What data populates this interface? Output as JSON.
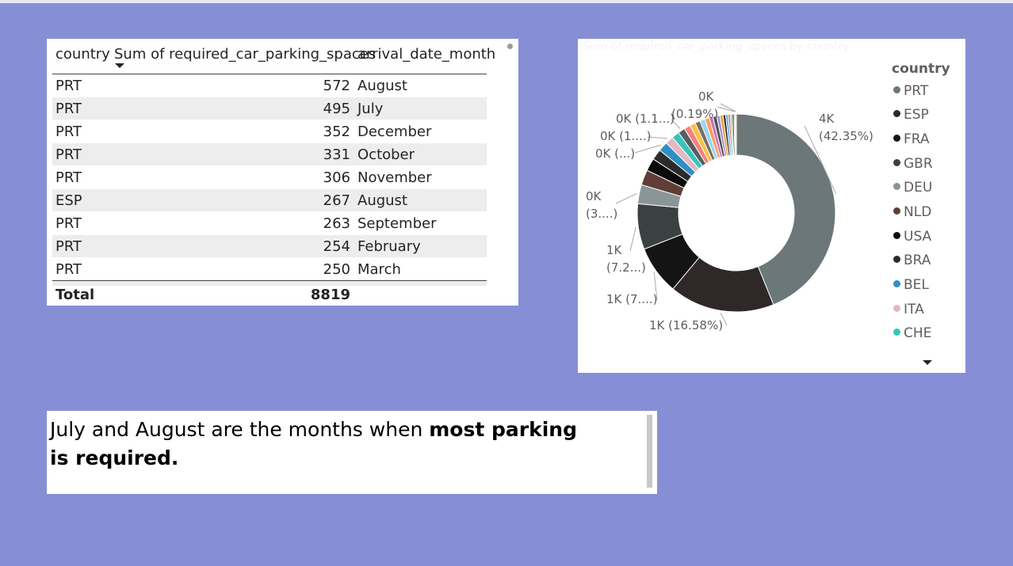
{
  "table": {
    "headers": [
      "country",
      "Sum of required_car_parking_spaces",
      "arrival_date_month"
    ],
    "sort_column": "Sum of required_car_parking_spaces",
    "rows": [
      [
        "PRT",
        "572",
        "August"
      ],
      [
        "PRT",
        "495",
        "July"
      ],
      [
        "PRT",
        "352",
        "December"
      ],
      [
        "PRT",
        "331",
        "October"
      ],
      [
        "PRT",
        "306",
        "November"
      ],
      [
        "ESP",
        "267",
        "August"
      ],
      [
        "PRT",
        "263",
        "September"
      ],
      [
        "PRT",
        "254",
        "February"
      ],
      [
        "PRT",
        "250",
        "March"
      ]
    ],
    "total_label": "Total",
    "total_value": "8819"
  },
  "chart_data": {
    "type": "pie",
    "variant": "donut",
    "title": "Sum of required_car_parking_spaces by country",
    "legend_title": "country",
    "legend_position": "right",
    "legend": [
      {
        "name": "PRT",
        "color": "#6b7779"
      },
      {
        "name": "ESP",
        "color": "#2e2828"
      },
      {
        "name": "FRA",
        "color": "#141414"
      },
      {
        "name": "GBR",
        "color": "#3b4040"
      },
      {
        "name": "DEU",
        "color": "#8a9597"
      },
      {
        "name": "NLD",
        "color": "#5e3e36"
      },
      {
        "name": "USA",
        "color": "#0a0a0a"
      },
      {
        "name": "BRA",
        "color": "#2b2b2b"
      },
      {
        "name": "BEL",
        "color": "#2f8fc4"
      },
      {
        "name": "ITA",
        "color": "#e3b8c0"
      },
      {
        "name": "CHE",
        "color": "#38c4b9"
      }
    ],
    "slices": [
      {
        "name": "PRT",
        "percent": 42.35,
        "color": "#6b7779"
      },
      {
        "name": "ESP",
        "percent": 16.58,
        "color": "#2e2828"
      },
      {
        "name": "FRA",
        "percent": 7.7,
        "color": "#141414"
      },
      {
        "name": "GBR",
        "percent": 7.2,
        "color": "#3b4040"
      },
      {
        "name": "DEU",
        "percent": 3.0,
        "color": "#8a9597"
      },
      {
        "name": "NLD",
        "percent": 2.4,
        "color": "#5e3e36"
      },
      {
        "name": "USA",
        "percent": 2.0,
        "color": "#0a0a0a"
      },
      {
        "name": "BRA",
        "percent": 1.7,
        "color": "#2b2b2b"
      },
      {
        "name": "BEL",
        "percent": 1.5,
        "color": "#2f8fc4"
      },
      {
        "name": "ITA",
        "percent": 1.3,
        "color": "#e3b8c0"
      },
      {
        "name": "CHE",
        "percent": 1.2,
        "color": "#38c4b9"
      },
      {
        "name": "other-1",
        "percent": 1.1,
        "color": "#565f60"
      },
      {
        "name": "other-2",
        "percent": 1.0,
        "color": "#f77f7f"
      },
      {
        "name": "other-3",
        "percent": 0.9,
        "color": "#f5c242"
      },
      {
        "name": "other-4",
        "percent": 0.8,
        "color": "#7a6e68"
      },
      {
        "name": "other-5",
        "percent": 0.8,
        "color": "#9ad4f0"
      },
      {
        "name": "other-6",
        "percent": 0.7,
        "color": "#ff9d5c"
      },
      {
        "name": "other-7",
        "percent": 0.6,
        "color": "#d26fb8"
      },
      {
        "name": "other-8",
        "percent": 0.6,
        "color": "#4a5356"
      },
      {
        "name": "other-9",
        "percent": 0.5,
        "color": "#a48fd0"
      },
      {
        "name": "other-10",
        "percent": 0.5,
        "color": "#e8a23d"
      },
      {
        "name": "other-11",
        "percent": 0.4,
        "color": "#1f1f1f"
      },
      {
        "name": "other-12",
        "percent": 0.4,
        "color": "#6ab0d8"
      },
      {
        "name": "other-13",
        "percent": 0.3,
        "color": "#c95f5f"
      },
      {
        "name": "other-14",
        "percent": 0.3,
        "color": "#8fd19e"
      },
      {
        "name": "other-15",
        "percent": 0.3,
        "color": "#444444"
      },
      {
        "name": "other-16",
        "percent": 0.19,
        "color": "#b5a9a0"
      },
      {
        "name": "other-17",
        "percent": 0.19,
        "color": "#e4c96b"
      }
    ],
    "data_labels": [
      {
        "slice": "PRT",
        "line1": "4K",
        "line2": "(42.35%)"
      },
      {
        "slice": "ESP",
        "line1": "1K (16.58%)",
        "line2": ""
      },
      {
        "slice": "FRA",
        "line1": "1K (7....)",
        "line2": ""
      },
      {
        "slice": "GBR",
        "line1": "1K",
        "line2": "(7.2...)"
      },
      {
        "slice": "DEU",
        "line1": "0K",
        "line2": "(3....)"
      },
      {
        "slice": "BEL",
        "line1": "0K (...)",
        "line2": ""
      },
      {
        "slice": "ITA",
        "line1": "0K (1....)",
        "line2": ""
      },
      {
        "slice": "other-1",
        "line1": "0K (1.1...)",
        "line2": ""
      },
      {
        "slice": "other-16",
        "line1": "(0.19%)",
        "line2": ""
      },
      {
        "slice": "other-17",
        "line1": "0K",
        "line2": ""
      }
    ]
  },
  "textbox": {
    "text_normal": "July and August are the months when ",
    "text_bold": "most parking is required."
  }
}
